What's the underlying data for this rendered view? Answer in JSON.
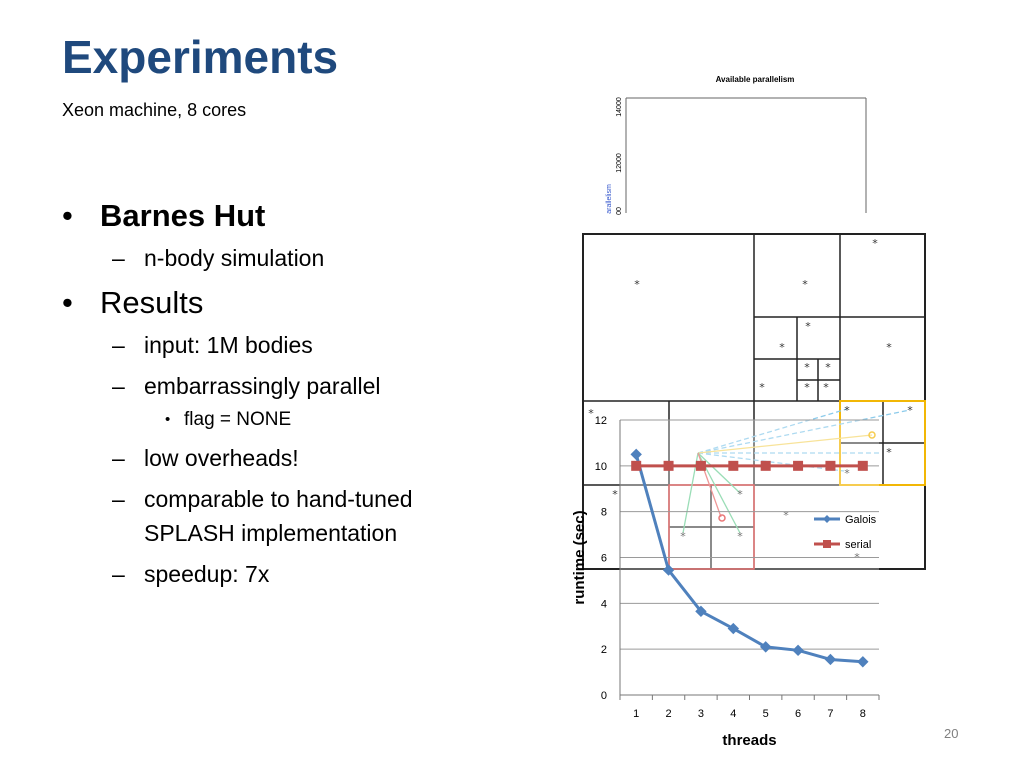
{
  "slide": {
    "title": "Experiments",
    "subtitle": "Xeon machine, 8 cores",
    "page_number": "20"
  },
  "bullets": [
    {
      "level": 1,
      "text": "Barnes Hut",
      "bold": true
    },
    {
      "level": 2,
      "text": "n-body simulation"
    },
    {
      "level": 1,
      "text": "Results"
    },
    {
      "level": 2,
      "text": "input: 1M bodies"
    },
    {
      "level": 2,
      "text": "embarrassingly parallel"
    },
    {
      "level": 3,
      "text": "flag = NONE"
    },
    {
      "level": 2,
      "text": "low overheads!"
    },
    {
      "level": 2,
      "text": "comparable to hand-tuned SPLASH implementation"
    },
    {
      "level": 2,
      "text": "speedup: 7x"
    }
  ],
  "background_figure": {
    "title": "Available parallelism",
    "y_tick_labels": [
      "14000",
      "12000"
    ],
    "y_axis_label_fragment": "arallelism",
    "y_tick_fragment": "00"
  },
  "chart_data": {
    "type": "line",
    "title": "",
    "xlabel": "threads",
    "ylabel": "runtime (sec)",
    "x": [
      1,
      2,
      3,
      4,
      5,
      6,
      7,
      8
    ],
    "ylim": [
      0,
      12
    ],
    "y_ticks": [
      0,
      2,
      4,
      6,
      8,
      10,
      12
    ],
    "grid": true,
    "legend_position": "right",
    "series": [
      {
        "name": "Galois",
        "values": [
          10.5,
          5.45,
          3.65,
          2.9,
          2.1,
          1.95,
          1.55,
          1.45
        ],
        "color": "#4F81BD",
        "marker": "diamond"
      },
      {
        "name": "serial",
        "values": [
          10.0,
          10.0,
          10.0,
          10.0,
          10.0,
          10.0,
          10.0,
          10.0
        ],
        "color": "#C0504D",
        "marker": "square"
      }
    ]
  },
  "colors": {
    "title": "#1F497D",
    "page_number": "#808080"
  }
}
